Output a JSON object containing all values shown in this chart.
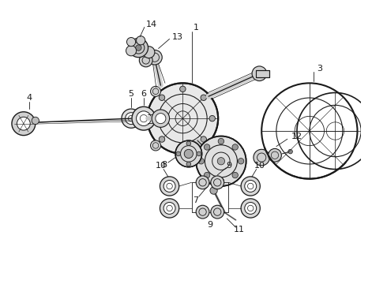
{
  "bg_color": "#ffffff",
  "line_color": "#1a1a1a",
  "fig_width": 4.9,
  "fig_height": 3.6,
  "dpi": 100,
  "label_fs": 7.5,
  "lw_main": 1.0,
  "lw_thin": 0.5
}
